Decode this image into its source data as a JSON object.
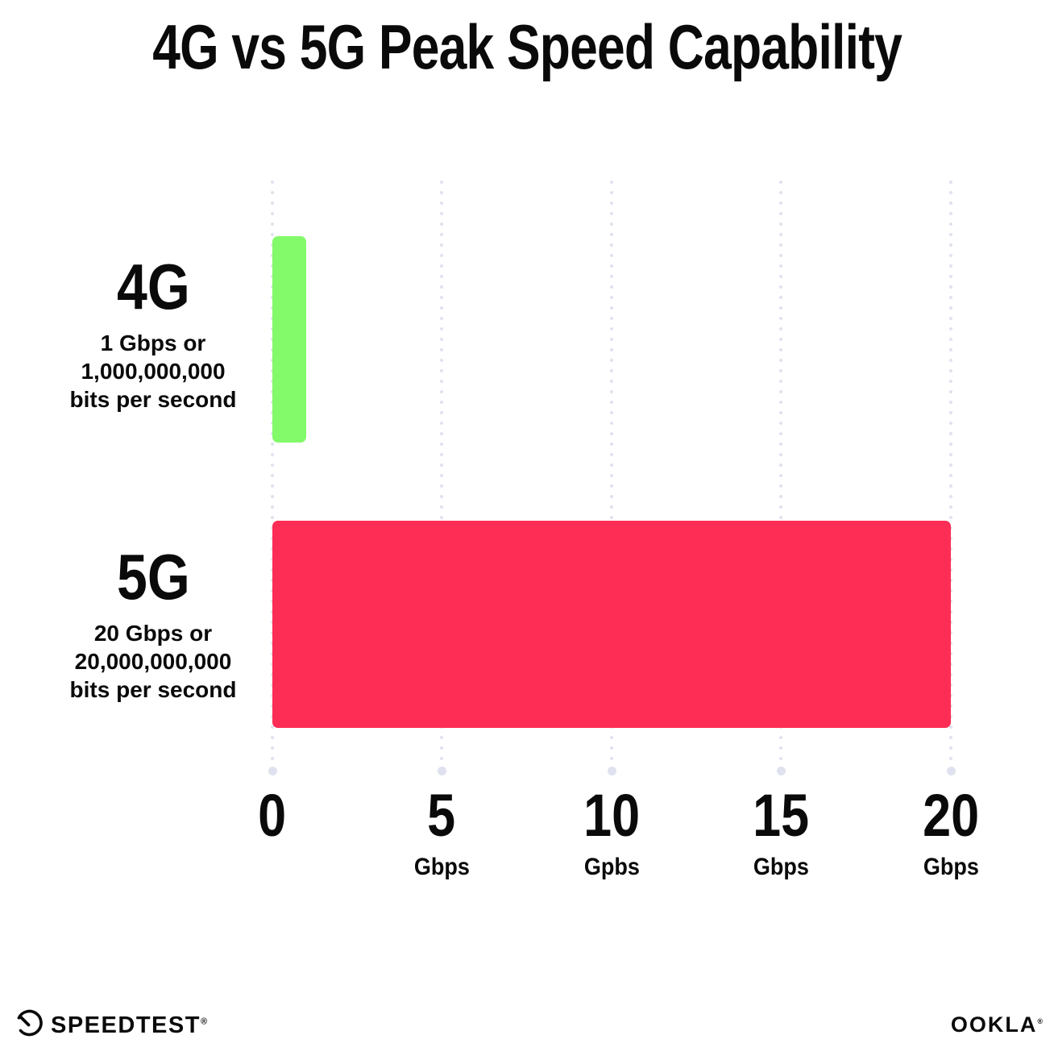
{
  "chart_data": {
    "type": "bar",
    "orientation": "horizontal",
    "title": "4G vs 5G Peak Speed Capability",
    "xlabel": "Gbps",
    "xlim": [
      0,
      20
    ],
    "grid": "vertical-dotted",
    "series": [
      {
        "category": "4G",
        "value_gbps": 1,
        "color": "#82FA69",
        "desc_lines": [
          "1 Gbps or",
          "1,000,000,000",
          "bits per second"
        ]
      },
      {
        "category": "5G",
        "value_gbps": 20,
        "color": "#FD2D55",
        "desc_lines": [
          "20 Gbps or",
          "20,000,000,000",
          "bits per second"
        ]
      }
    ],
    "x_ticks": [
      {
        "label": "0",
        "unit": ""
      },
      {
        "label": "5",
        "unit": "Gbps"
      },
      {
        "label": "10",
        "unit": "Gpbs"
      },
      {
        "label": "15",
        "unit": "Gbps"
      },
      {
        "label": "20",
        "unit": "Gbps"
      }
    ]
  },
  "footer": {
    "speedtest_label": "SPEEDTEST",
    "speedtest_mark": "®",
    "ookla_label": "OOKLA",
    "ookla_mark": "®"
  },
  "colors": {
    "background": "#FFFFFF",
    "text": "#0A0A0A",
    "gridline": "#E0E2EE",
    "bar_4g": "#82FA69",
    "bar_5g": "#FD2D55"
  }
}
